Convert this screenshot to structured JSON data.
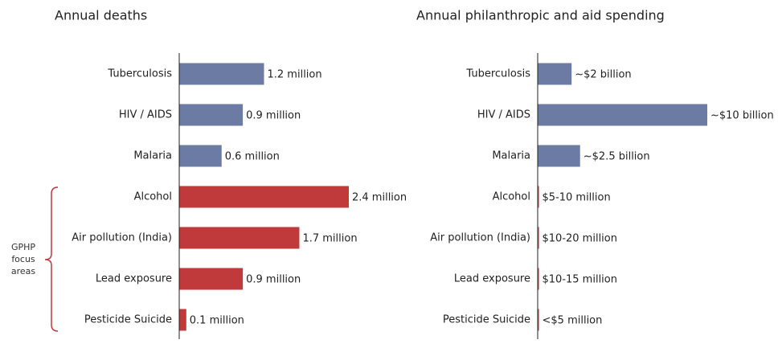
{
  "chart_data": [
    {
      "type": "bar",
      "orientation": "horizontal",
      "title": "Annual deaths",
      "categories": [
        "Tuberculosis",
        "HIV / AIDS",
        "Malaria",
        "Alcohol",
        "Air pollution (India)",
        "Lead exposure",
        "Pesticide Suicide"
      ],
      "values": [
        1.2,
        0.9,
        0.6,
        2.4,
        1.7,
        0.9,
        0.1
      ],
      "value_labels": [
        "1.2 million",
        "0.9 million",
        "0.6 million",
        "2.4 million",
        "1.7 million",
        "0.9 million",
        "0.1 million"
      ],
      "colors": [
        "#6b7ba3",
        "#6b7ba3",
        "#6b7ba3",
        "#c0393b",
        "#c0393b",
        "#c0393b",
        "#c0393b"
      ],
      "annotation": "GPHP focus areas"
    },
    {
      "type": "bar",
      "orientation": "horizontal",
      "title": "Annual philanthropic and aid spending",
      "categories": [
        "Tuberculosis",
        "HIV / AIDS",
        "Malaria",
        "Alcohol",
        "Air pollution (India)",
        "Lead exposure",
        "Pesticide Suicide"
      ],
      "values": [
        2000,
        10000,
        2500,
        7.5,
        15,
        12.5,
        2.5
      ],
      "value_labels": [
        "~$2 billion",
        "~$10 billion",
        "~$2.5 billion",
        "$5-10 million",
        "$10-20 million",
        "$10-15 million",
        "<$5 million"
      ],
      "colors": [
        "#6b7ba3",
        "#6b7ba3",
        "#6b7ba3",
        "#c0393b",
        "#c0393b",
        "#c0393b",
        "#c0393b"
      ]
    }
  ]
}
